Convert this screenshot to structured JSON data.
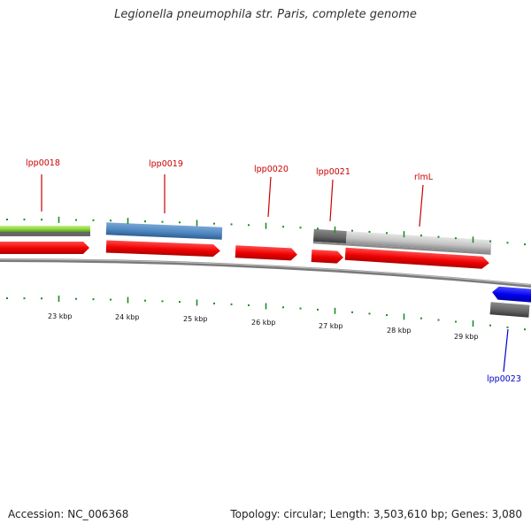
{
  "title": "Legionella pneumophila str. Paris, complete genome",
  "footer": {
    "accession": "Accession: NC_006368",
    "summary": "Topology: circular; Length: 3,503,610 bp; Genes: 3,080"
  },
  "gene_labels": [
    {
      "id": "lpp0018",
      "text": "lpp0018",
      "color": "#cc0000"
    },
    {
      "id": "lpp0019",
      "text": "lpp0019",
      "color": "#cc0000"
    },
    {
      "id": "lpp0020",
      "text": "lpp0020",
      "color": "#cc0000"
    },
    {
      "id": "lpp0021",
      "text": "lpp0021",
      "color": "#cc0000"
    },
    {
      "id": "rlmL",
      "text": "rlmL",
      "color": "#cc0000"
    },
    {
      "id": "lpp0023",
      "text": "lpp0023",
      "color": "#0000cc"
    }
  ],
  "scale_labels": [
    "23 kbp",
    "24 kbp",
    "25 kbp",
    "26 kbp",
    "27 kbp",
    "28 kbp",
    "29 kbp"
  ],
  "colors": {
    "forward_cds": "#ff0000",
    "reverse_cds": "#0000ff",
    "tick": "#228b22",
    "backbone": "#888888",
    "gene_green": "#8fd63c",
    "gene_blue": "#4f87c0",
    "gene_gray": "#bbbbbb",
    "gene_dark": "#666666"
  }
}
